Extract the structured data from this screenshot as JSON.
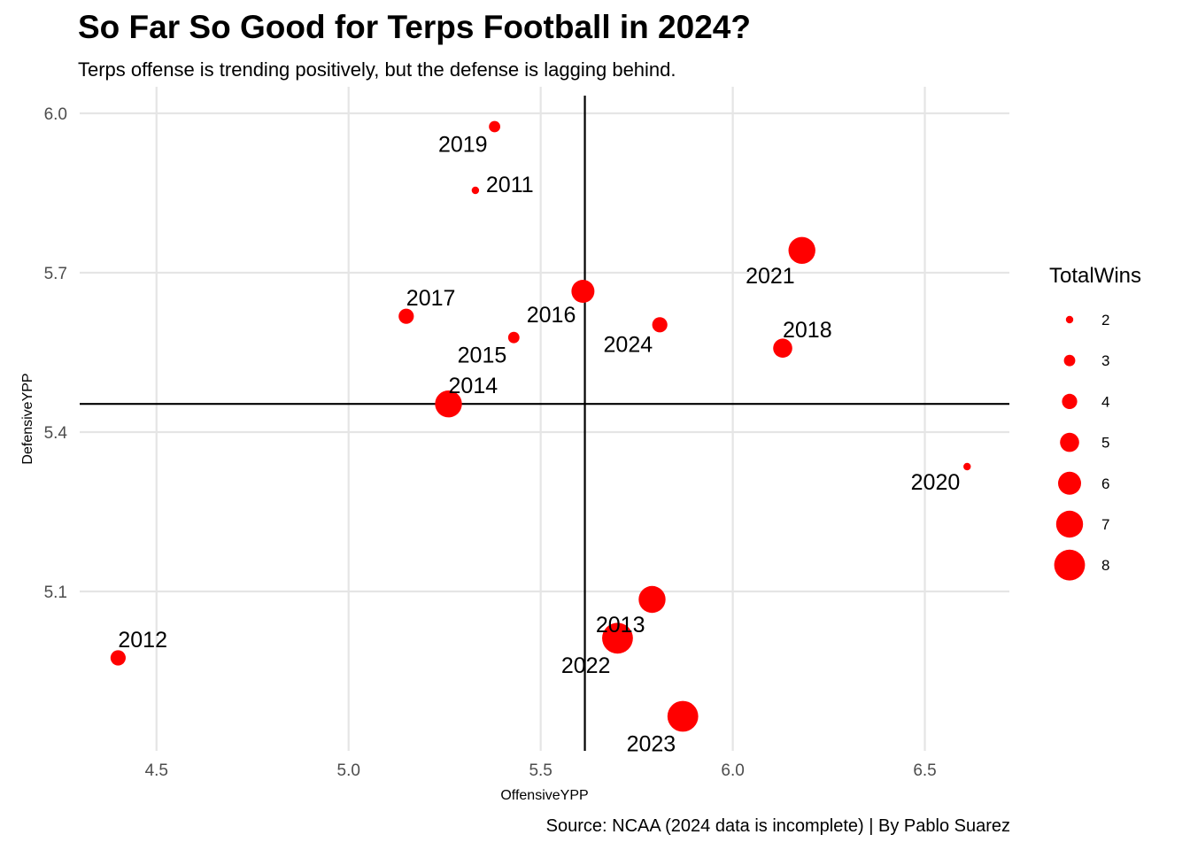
{
  "title": "So Far So Good for Terps Football in 2024?",
  "subtitle": "Terps offense is trending positively, but the defense is lagging behind.",
  "caption": "Source: NCAA (2024 data is incomplete)   |   By Pablo Suarez",
  "chart_data": {
    "type": "scatter",
    "xlabel": "OffensiveYPP",
    "ylabel": "DefensiveYPP",
    "xlim": [
      4.3,
      6.72
    ],
    "ylim": [
      4.8,
      6.05
    ],
    "x_ticks": [
      4.5,
      5.0,
      5.5,
      6.0,
      6.5
    ],
    "x_tick_labels": [
      "4.5",
      "5.0",
      "5.5",
      "6.0",
      "6.5"
    ],
    "y_ticks": [
      5.1,
      5.4,
      5.7,
      6.0
    ],
    "y_tick_labels": [
      "5.1",
      "5.4",
      "5.7",
      "6.0"
    ],
    "grid": true,
    "point_color": "#ff0000",
    "reference_lines": {
      "x": 5.615,
      "y": 5.453
    },
    "size_legend": {
      "title": "TotalWins",
      "values": [
        2,
        3,
        4,
        5,
        6,
        7,
        8
      ],
      "labels": [
        "2",
        "3",
        "4",
        "5",
        "6",
        "7",
        "8"
      ],
      "placement": "right"
    },
    "points": [
      {
        "label": "2011",
        "x": 5.33,
        "y": 5.855,
        "wins": 2,
        "label_pos": "right"
      },
      {
        "label": "2012",
        "x": 4.4,
        "y": 4.975,
        "wins": 4,
        "label_pos": "above-right"
      },
      {
        "label": "2013",
        "x": 5.79,
        "y": 5.085,
        "wins": 7,
        "label_pos": "below-left"
      },
      {
        "label": "2014",
        "x": 5.26,
        "y": 5.453,
        "wins": 7,
        "label_pos": "above-right"
      },
      {
        "label": "2015",
        "x": 5.43,
        "y": 5.578,
        "wins": 3,
        "label_pos": "below-left"
      },
      {
        "label": "2016",
        "x": 5.61,
        "y": 5.665,
        "wins": 6,
        "label_pos": "below-left"
      },
      {
        "label": "2017",
        "x": 5.15,
        "y": 5.618,
        "wins": 4,
        "label_pos": "above-right"
      },
      {
        "label": "2018",
        "x": 6.13,
        "y": 5.558,
        "wins": 5,
        "label_pos": "above-right"
      },
      {
        "label": "2019",
        "x": 5.38,
        "y": 5.975,
        "wins": 3,
        "label_pos": "below-left"
      },
      {
        "label": "2020",
        "x": 6.61,
        "y": 5.335,
        "wins": 2,
        "label_pos": "below-left"
      },
      {
        "label": "2021",
        "x": 6.18,
        "y": 5.742,
        "wins": 7,
        "label_pos": "below-left"
      },
      {
        "label": "2022",
        "x": 5.7,
        "y": 5.012,
        "wins": 8,
        "label_pos": "below-left"
      },
      {
        "label": "2023",
        "x": 5.87,
        "y": 4.865,
        "wins": 8,
        "label_pos": "below-left"
      },
      {
        "label": "2024",
        "x": 5.81,
        "y": 5.602,
        "wins": 4,
        "label_pos": "below-left"
      }
    ]
  }
}
